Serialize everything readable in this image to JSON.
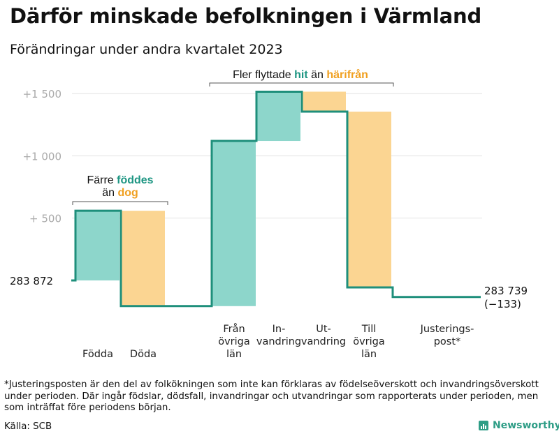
{
  "title": "Därför minskade befolkningen i Värmland",
  "subtitle": "Förändringar under andra kvartalet 2023",
  "chart_data": {
    "type": "waterfall",
    "start_value": 283872,
    "end_value": 283739,
    "y_ticks": [
      {
        "value": 500,
        "label": "+  500"
      },
      {
        "value": 1000,
        "label": "+1  000"
      },
      {
        "value": 1500,
        "label": "+1  500"
      }
    ],
    "start_label": "283  872",
    "end_label_value": "283 739",
    "end_label_change": "(−133)",
    "steps": [
      {
        "category": "Födda",
        "label_lines": [
          "Födda"
        ],
        "change": 559,
        "kind": "increase"
      },
      {
        "category": "Döda",
        "label_lines": [
          "Döda"
        ],
        "change": -765,
        "kind": "decrease"
      },
      {
        "category": "Från övriga län",
        "label_lines": [
          "Från",
          "övriga",
          "län"
        ],
        "change": 1325,
        "kind": "increase"
      },
      {
        "category": "Invandring",
        "label_lines": [
          "In-",
          "vandring"
        ],
        "change": 395,
        "kind": "increase"
      },
      {
        "category": "Utvandring",
        "label_lines": [
          "Ut-",
          "vandring"
        ],
        "change": -160,
        "kind": "decrease"
      },
      {
        "category": "Till övriga län",
        "label_lines": [
          "Till",
          "övriga",
          "län"
        ],
        "change": -1410,
        "kind": "decrease"
      },
      {
        "category": "Justeringspost*",
        "label_lines": [
          "Justerings-",
          "post*"
        ],
        "change": -77,
        "kind": "adjustment"
      }
    ],
    "annotations": [
      {
        "id": "fodda-doda",
        "line1": [
          {
            "text": "Färre ",
            "style": "plain"
          },
          {
            "text": "föddes",
            "style": "teal"
          }
        ],
        "line2": [
          {
            "text": "än ",
            "style": "plain"
          },
          {
            "text": "dog",
            "style": "orange"
          }
        ]
      },
      {
        "id": "flytt",
        "line1": [
          {
            "text": "Fler flyttade ",
            "style": "plain"
          },
          {
            "text": "hit",
            "style": "teal"
          },
          {
            "text": "  än ",
            "style": "plain"
          },
          {
            "text": "härifrån",
            "style": "orange"
          }
        ]
      }
    ],
    "colors": {
      "increase_fill": "#8dd6cb",
      "decrease_fill": "#fbd592",
      "step_line": "#1e8f7b",
      "grid": "#e2e2e2",
      "axis_text": "#aaaaaa",
      "teal_text": "#1e9683",
      "orange_text": "#f0a020"
    }
  },
  "footnote": "*Justeringsposten är den del av folkökningen som inte kan förklaras av födelseöverskott och invandringsöverskott under perioden. Där ingår födslar, dödsfall, invandringar och utvandringar som rapporterats under perioden, men som inträffat före periodens början.",
  "source": "Källa: SCB",
  "brand": "Newsworthy"
}
